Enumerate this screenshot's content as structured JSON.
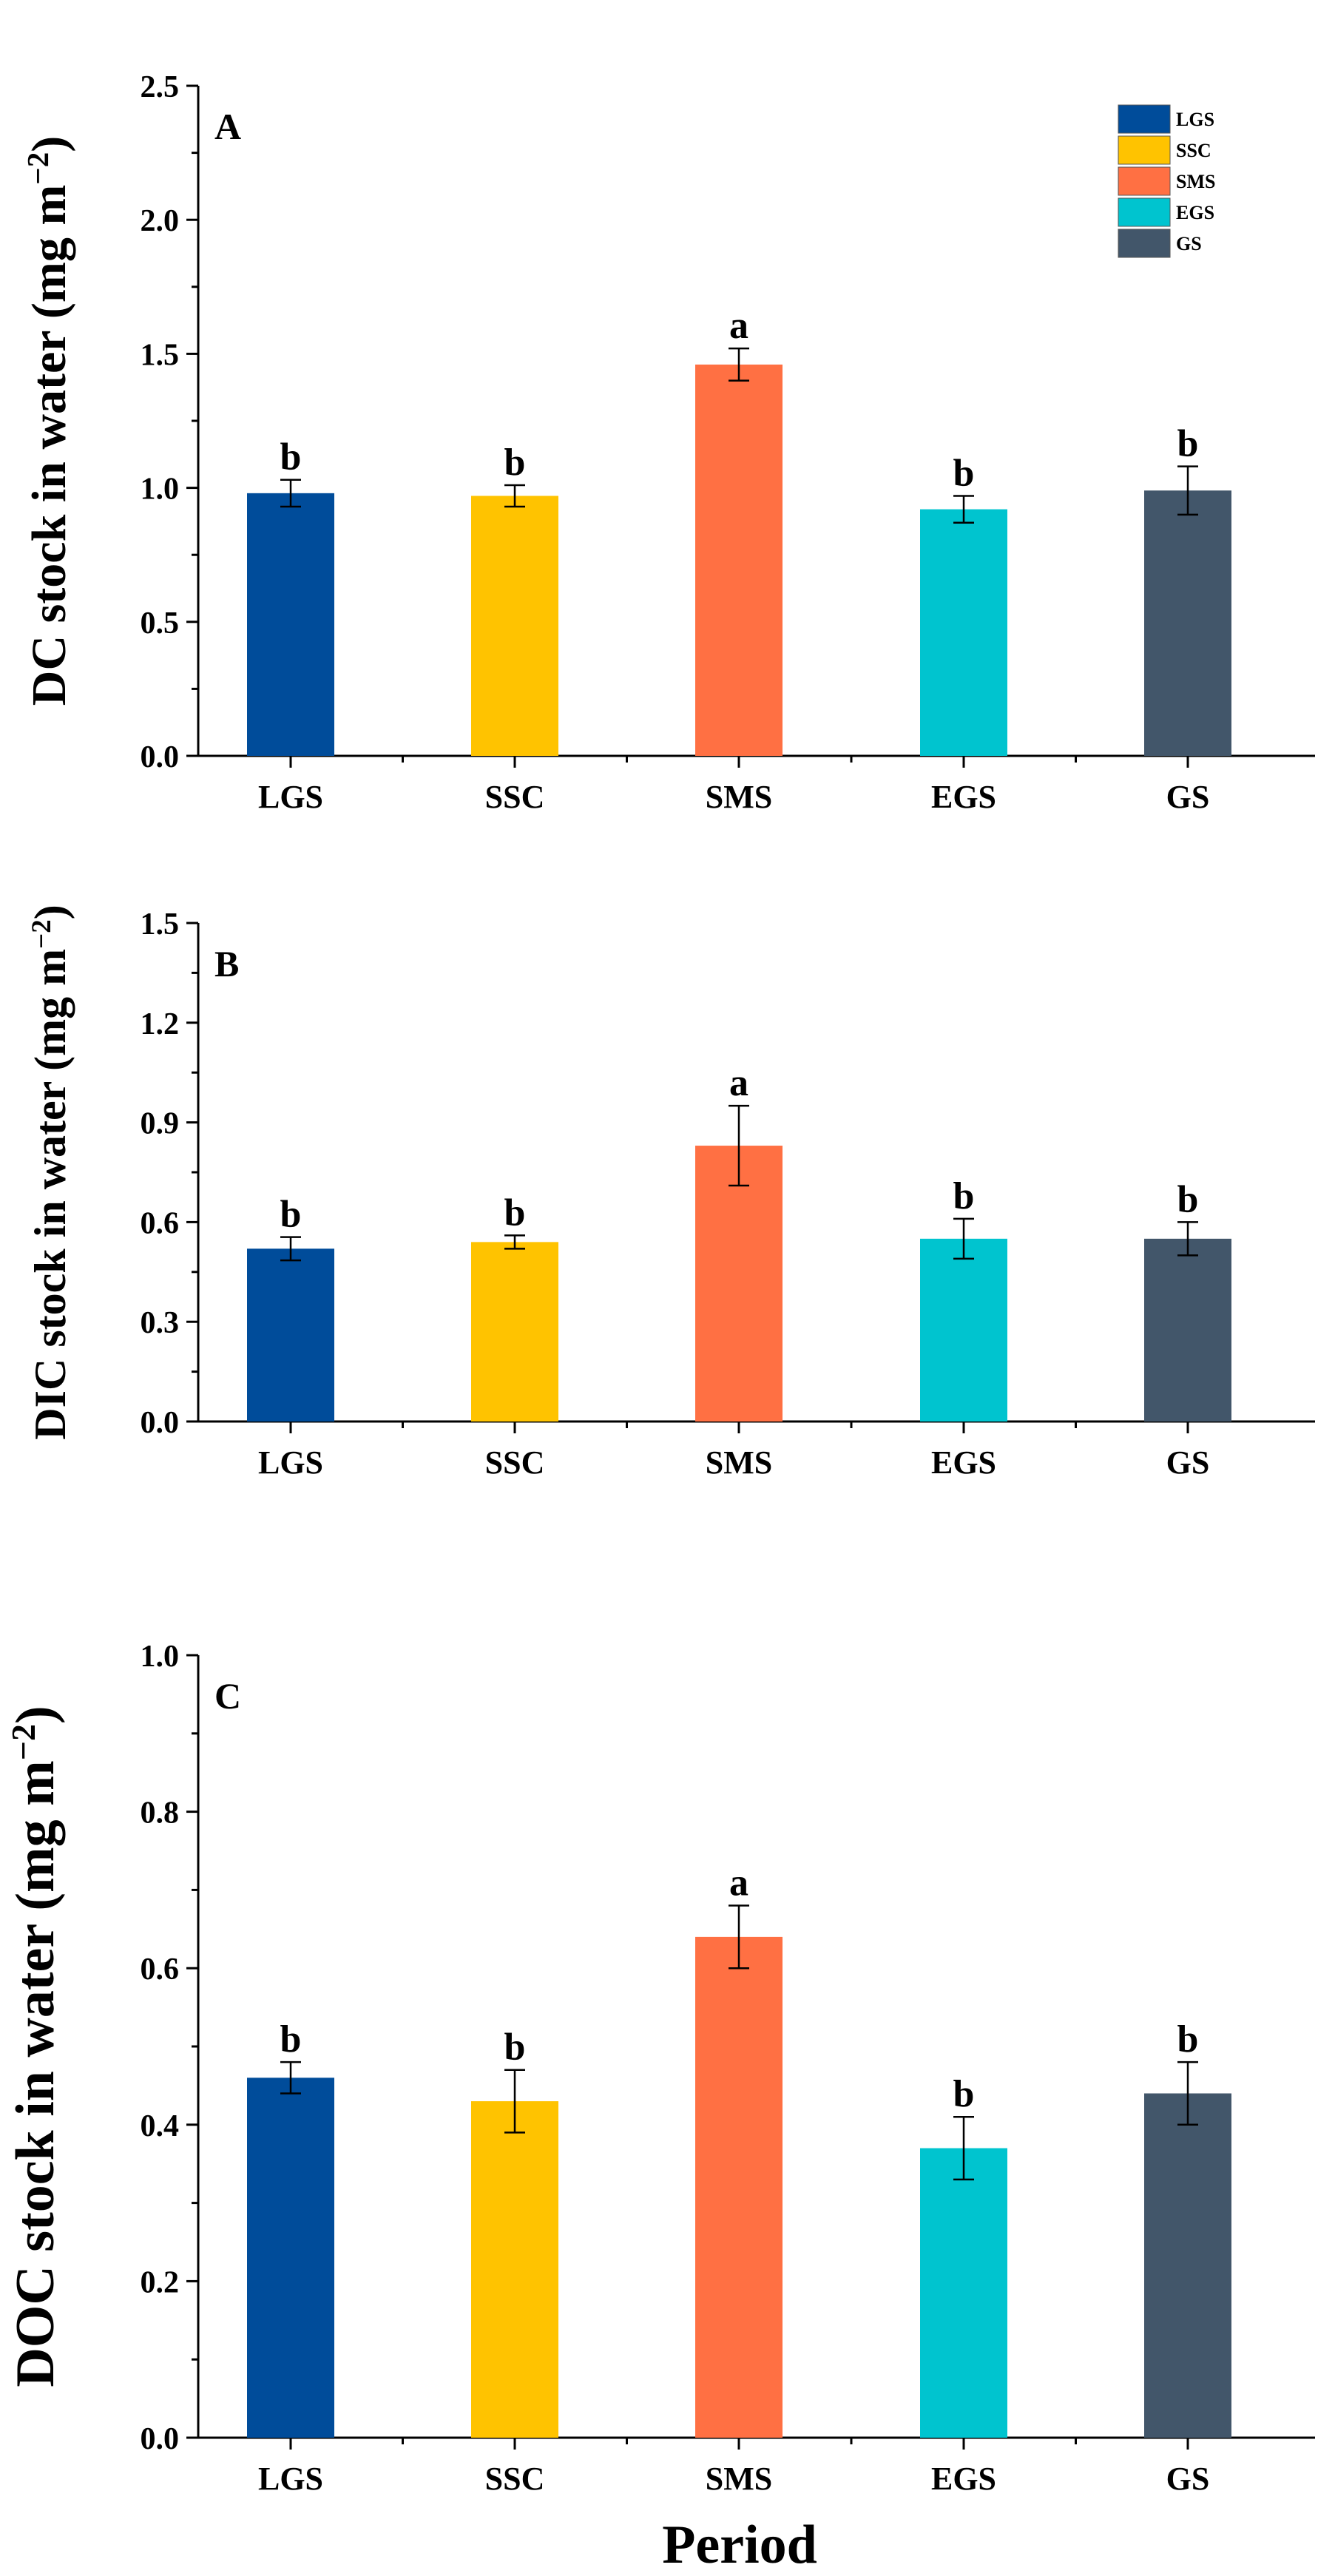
{
  "figure": {
    "xlabel": "Period",
    "legend": {
      "placement": "top-right",
      "entries": [
        "LGS",
        "SSC",
        "SMS",
        "EGS",
        "GS"
      ]
    }
  },
  "colors": {
    "LGS": "#004C9A",
    "SSC": "#FFC300",
    "SMS": "#FF7043",
    "EGS": "#00C4CF",
    "GS": "#42566A"
  },
  "chart_data": [
    {
      "type": "bar",
      "panel": "A",
      "ylabel_prefix": "DC stock in water (mg m",
      "ylabel_sup": "−2",
      "ylabel_suffix": ")",
      "categories": [
        "LGS",
        "SSC",
        "SMS",
        "EGS",
        "GS"
      ],
      "values": [
        0.98,
        0.97,
        1.46,
        0.92,
        0.99
      ],
      "errors": [
        0.05,
        0.04,
        0.06,
        0.05,
        0.09
      ],
      "significance": [
        "b",
        "b",
        "a",
        "b",
        "b"
      ],
      "ylim": [
        0,
        2.5
      ],
      "yticks": [
        0.0,
        0.5,
        1.0,
        1.5,
        2.0,
        2.5
      ],
      "ytick_labels": [
        "0.0",
        "0.5",
        "1.0",
        "1.5",
        "2.0",
        "2.5"
      ],
      "legend": true
    },
    {
      "type": "bar",
      "panel": "B",
      "ylabel_prefix": "DIC stock in water (mg m",
      "ylabel_sup": "−2",
      "ylabel_suffix": ")",
      "categories": [
        "LGS",
        "SSC",
        "SMS",
        "EGS",
        "GS"
      ],
      "values": [
        0.52,
        0.54,
        0.83,
        0.55,
        0.55
      ],
      "errors": [
        0.035,
        0.02,
        0.12,
        0.06,
        0.05
      ],
      "significance": [
        "b",
        "b",
        "a",
        "b",
        "b"
      ],
      "ylim": [
        0,
        1.5
      ],
      "yticks": [
        0.0,
        0.3,
        0.6,
        0.9,
        1.2,
        1.5
      ],
      "ytick_labels": [
        "0.0",
        "0.3",
        "0.6",
        "0.9",
        "1.2",
        "1.5"
      ],
      "legend": false
    },
    {
      "type": "bar",
      "panel": "C",
      "ylabel_prefix": "DOC stock in water (mg m",
      "ylabel_sup": "−2",
      "ylabel_suffix": ")",
      "categories": [
        "LGS",
        "SSC",
        "SMS",
        "EGS",
        "GS"
      ],
      "values": [
        0.46,
        0.43,
        0.64,
        0.37,
        0.44
      ],
      "errors": [
        0.02,
        0.04,
        0.04,
        0.04,
        0.04
      ],
      "significance": [
        "b",
        "b",
        "a",
        "b",
        "b"
      ],
      "ylim": [
        0,
        1.0
      ],
      "yticks": [
        0.0,
        0.2,
        0.4,
        0.6,
        0.8,
        1.0
      ],
      "ytick_labels": [
        "0.0",
        "0.2",
        "0.4",
        "0.6",
        "0.8",
        "1.0"
      ],
      "legend": false
    }
  ]
}
